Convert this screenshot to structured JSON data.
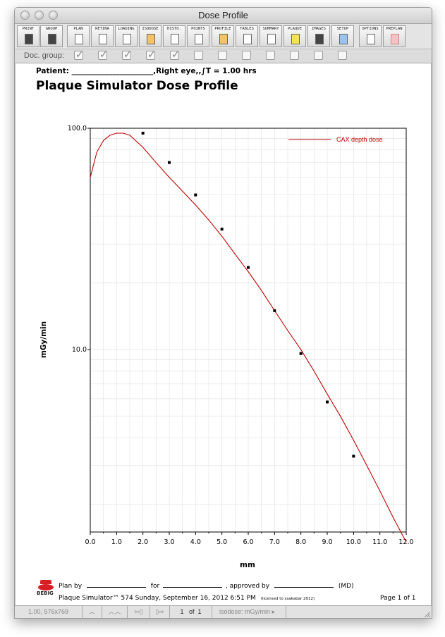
{
  "window": {
    "title": "Dose Profile"
  },
  "toolbar": {
    "buttons": [
      {
        "label": "PRINT",
        "icon": "printer-icon"
      },
      {
        "label": "GROUP",
        "icon": "group-printer-icon"
      },
      {
        "label": "PLAN",
        "icon": "plan-icon"
      },
      {
        "label": "RETINA",
        "icon": "retina-icon"
      },
      {
        "label": "LOADING",
        "icon": "loading-icon"
      },
      {
        "label": "ISODOSE",
        "icon": "isodose-icon"
      },
      {
        "label": "HISTO.",
        "icon": "histogram-icon"
      },
      {
        "label": "POINTS",
        "icon": "points-icon"
      },
      {
        "label": "PROFILE",
        "icon": "profile-icon"
      },
      {
        "label": "TABLES",
        "icon": "tables-icon"
      },
      {
        "label": "SUMMARY",
        "icon": "summary-icon"
      },
      {
        "label": "PLAQUE",
        "icon": "plaque-icon"
      },
      {
        "label": "IMAGES",
        "icon": "images-icon"
      },
      {
        "label": "SETUP",
        "icon": "setup-icon"
      },
      {
        "label": "OPTIONS",
        "icon": "options-icon"
      },
      {
        "label": "PREPLAN",
        "icon": "preplan-icon"
      }
    ]
  },
  "doc_group": {
    "label": "Doc. group:",
    "checked": [
      true,
      true,
      true,
      true,
      true,
      false,
      false,
      false,
      false,
      false,
      false,
      false
    ]
  },
  "document": {
    "patient_line": "Patient: ______________________,Right eye,,∫T = 1.00 hrs",
    "title": "Plaque Simulator Dose Profile",
    "plan_by": "Plan by",
    "for": "for",
    "approved_by": ", approved by",
    "md": "(MD)",
    "logo_text": "BEBIG",
    "software_line": "Plaque Simulator™ 574 Sunday, September 16, 2012 6:51 PM",
    "license_note": "(licensed to ssakabar 2012)",
    "page_label": "Page 1  of 1"
  },
  "chart_data": {
    "type": "line",
    "title": "",
    "xlabel": "mm",
    "ylabel": "mGy/min",
    "xlim": [
      0,
      12
    ],
    "ylim": [
      1.5,
      100
    ],
    "yscale": "log",
    "grid": true,
    "legend_position": "top-right",
    "x_ticks": [
      "0.0",
      "1.0",
      "2.0",
      "3.0",
      "4.0",
      "5.0",
      "6.0",
      "7.0",
      "8.0",
      "9.0",
      "10.0",
      "11.0",
      "12.0"
    ],
    "y_tick_labels": [
      {
        "value": 100,
        "label": "100.0"
      },
      {
        "value": 10,
        "label": "10.0"
      }
    ],
    "series": [
      {
        "name": "CAX depth dose",
        "color": "#c00000",
        "x": [
          0.0,
          0.25,
          0.5,
          0.75,
          1.0,
          1.25,
          1.5,
          2.0,
          2.5,
          3.0,
          3.5,
          4.0,
          4.5,
          5.0,
          5.5,
          6.0,
          6.5,
          7.0,
          7.5,
          8.0,
          8.5,
          9.0,
          9.5,
          10.0,
          10.5,
          11.0,
          11.5,
          12.0
        ],
        "y": [
          60,
          78,
          88,
          93,
          95,
          95,
          93,
          82,
          70,
          60,
          52,
          45,
          38.5,
          32.5,
          27,
          22.5,
          18.5,
          15,
          12.2,
          10,
          8,
          6.3,
          5,
          3.9,
          3,
          2.3,
          1.75,
          1.35
        ]
      },
      {
        "name": "",
        "type": "scatter",
        "color": "#000000",
        "x": [
          2,
          3,
          4,
          5,
          6,
          7,
          8,
          9,
          10
        ],
        "y": [
          95,
          70,
          50,
          35,
          23.5,
          15,
          9.6,
          5.8,
          3.3
        ]
      }
    ]
  },
  "statusbar": {
    "zoom": "1.00, 576x769",
    "page_of": "1",
    "of": "of",
    "total": "1",
    "unit": "isodose: mGy/min"
  },
  "colors": {
    "curve": "#c00000",
    "grid": "#e4e4e4"
  }
}
